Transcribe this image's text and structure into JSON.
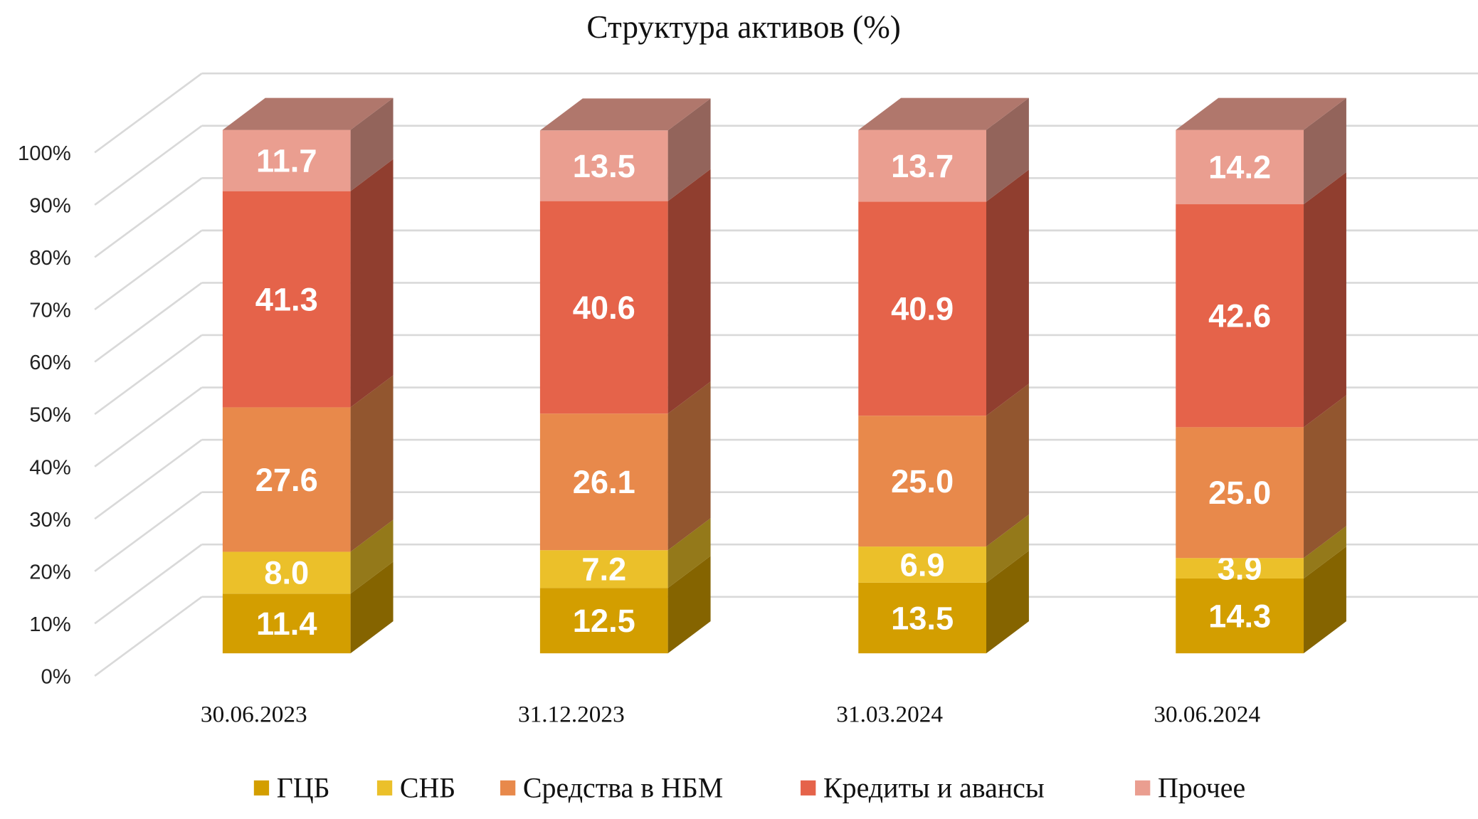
{
  "chart_data": {
    "type": "bar",
    "stacked": true,
    "style": "3d-stacked-column-100",
    "title": "Структура активов (%)",
    "categories": [
      "30.06.2023",
      "31.12.2023",
      "31.03.2024",
      "30.06.2024"
    ],
    "series": [
      {
        "name": "ГЦБ",
        "color": "#D39E00",
        "values": [
          11.4,
          12.5,
          13.5,
          14.3
        ],
        "labels": [
          "11.4",
          "12.5",
          "13.5",
          "14.3"
        ]
      },
      {
        "name": "СНБ",
        "color": "#EBC02A",
        "values": [
          8.0,
          7.2,
          6.9,
          3.9
        ],
        "labels": [
          "8.0",
          "7.2",
          "6.9",
          "3.9"
        ]
      },
      {
        "name": "Средства в НБМ",
        "color": "#E8894B",
        "values": [
          27.6,
          26.1,
          25.0,
          25.0
        ],
        "labels": [
          "27.6",
          "26.1",
          "25.0",
          "25.0"
        ]
      },
      {
        "name": "Кредиты и авансы",
        "color": "#E5634A",
        "values": [
          41.3,
          40.6,
          40.9,
          42.6
        ],
        "labels": [
          "41.3",
          "40.6",
          "40.9",
          "42.6"
        ]
      },
      {
        "name": "Прочее",
        "color": "#EA9E90",
        "values": [
          11.7,
          13.5,
          13.7,
          14.2
        ],
        "labels": [
          "11.7",
          "13.5",
          "13.7",
          "14.2"
        ]
      }
    ],
    "yticks": [
      "0%",
      "10%",
      "20%",
      "30%",
      "40%",
      "50%",
      "60%",
      "70%",
      "80%",
      "90%",
      "100%"
    ],
    "ylim": [
      0,
      100
    ],
    "grid": true,
    "legend": "bottom"
  }
}
